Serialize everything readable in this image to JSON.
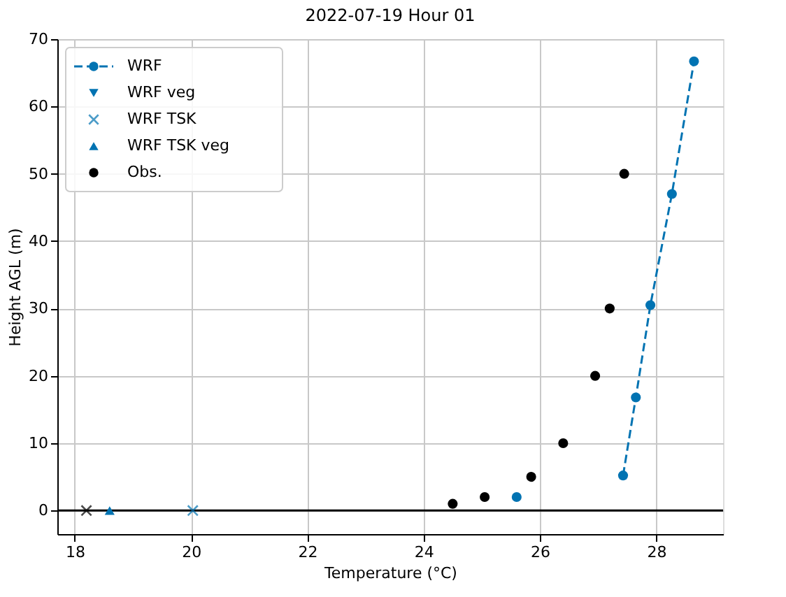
{
  "chart_data": {
    "type": "scatter",
    "title": "2022-07-19 Hour 01",
    "xlabel": "Temperature (°C)",
    "ylabel": "Height AGL (m)",
    "xlim": [
      17.7,
      29.15
    ],
    "xticks": [
      18,
      20,
      22,
      24,
      26,
      28
    ],
    "ylim": [
      -3.5,
      70
    ],
    "yticks": [
      0,
      10,
      20,
      30,
      40,
      50,
      60,
      70
    ],
    "grid": true,
    "legend": "top left",
    "ref_lines": [
      {
        "axis": "y",
        "value": 0,
        "color": "#000000"
      }
    ],
    "series": [
      {
        "name": "WRF",
        "type": "line",
        "line_style": "dashed",
        "marker": "circle",
        "color": "#0173b2",
        "x": [
          27.43,
          27.65,
          27.9,
          28.27,
          28.65
        ],
        "values": [
          5.2,
          16.8,
          30.5,
          47,
          66.7
        ]
      },
      {
        "name": "WRF veg",
        "marker": "triangle-down",
        "color": "#0173b2"
      },
      {
        "name": "WRF TSK",
        "marker": "cross",
        "color": "#0173b2",
        "x": [
          20.03
        ],
        "values": [
          0
        ]
      },
      {
        "name": "WRF TSK veg",
        "marker": "triangle",
        "color": "#0173b2",
        "x": [
          18.6
        ],
        "values": [
          0
        ]
      },
      {
        "name": "Obs.",
        "marker": "circle",
        "color": "#000000",
        "x": [
          24.5,
          25.05,
          25.85,
          26.4,
          26.95,
          27.2,
          27.45
        ],
        "values": [
          1,
          2,
          5,
          10,
          20,
          30,
          50
        ]
      },
      {
        "marker": "cross",
        "color": "#000000",
        "x": [
          18.2
        ],
        "values": [
          0
        ]
      },
      {
        "marker": "circle",
        "color": "#0173b2",
        "x": [
          25.6
        ],
        "values": [
          2
        ]
      }
    ]
  }
}
